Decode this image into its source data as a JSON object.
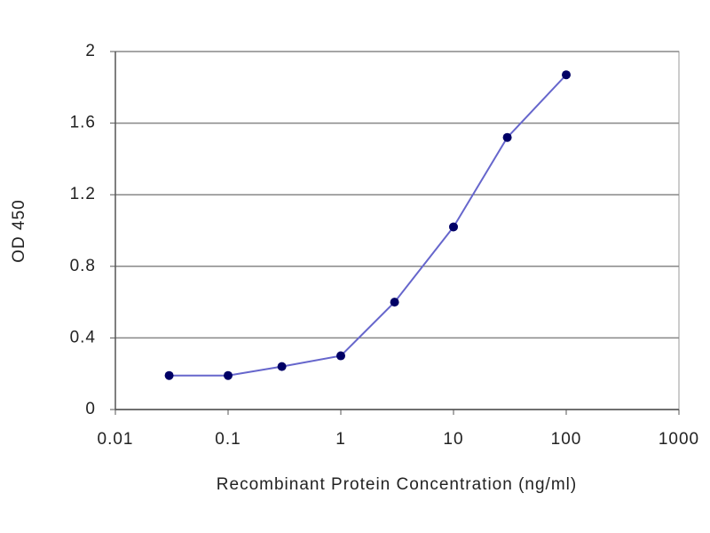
{
  "chart_data": {
    "type": "line",
    "xlabel": "Recombinant Protein Concentration (ng/ml)",
    "ylabel": "OD 450",
    "x": [
      0.03,
      0.1,
      0.3,
      1,
      3,
      10,
      30,
      100
    ],
    "series": [
      {
        "color": "#6666cc",
        "marker_color": "#000066",
        "values": [
          0.19,
          0.19,
          0.24,
          0.3,
          0.6,
          1.02,
          1.52,
          1.87
        ]
      }
    ],
    "xscale": "log",
    "xlim": [
      0.01,
      1000
    ],
    "xticks": [
      0.01,
      0.1,
      1,
      10,
      100,
      1000
    ],
    "ylim": [
      0,
      2
    ],
    "yticks": [
      0,
      0.4,
      0.8,
      1.2,
      1.6,
      2
    ],
    "grid": true
  }
}
